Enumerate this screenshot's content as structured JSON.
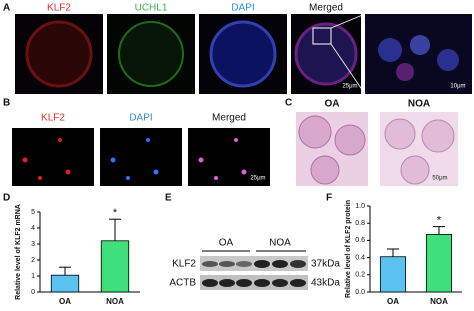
{
  "panels": {
    "labels": [
      "A",
      "B",
      "C",
      "D",
      "E",
      "F"
    ],
    "a_channels": [
      "KLF2",
      "UCHL1",
      "DAPI",
      "Merged"
    ],
    "a_scale": [
      "25μm",
      "10μm"
    ],
    "b_channels": [
      "KLF2",
      "DAPI",
      "Merged"
    ],
    "b_scale": "25μm",
    "c_groups": [
      "OA",
      "NOA"
    ],
    "c_scale": "50μm",
    "e_groups": [
      "OA",
      "NOA"
    ],
    "e_rows": [
      {
        "name": "KLF2",
        "size": "37kDa"
      },
      {
        "name": "ACTB",
        "size": "43kDa"
      }
    ]
  },
  "chart_data": [
    {
      "type": "bar",
      "y_label": "Relative level of KLF2 mRNA",
      "categories": [
        "OA",
        "NOA"
      ],
      "values": [
        1.05,
        3.2
      ],
      "errors": [
        0.5,
        1.35
      ],
      "colors": [
        "#5bc3f2",
        "#3fe07c"
      ],
      "ylim": [
        0,
        5
      ],
      "yticks": [
        0,
        1,
        2,
        3,
        4,
        5
      ],
      "annotation": "*"
    },
    {
      "type": "bar",
      "y_label": "Relative level of KLF2 protein",
      "categories": [
        "OA",
        "NOA"
      ],
      "values": [
        0.41,
        0.67
      ],
      "errors": [
        0.09,
        0.09
      ],
      "colors": [
        "#5bc3f2",
        "#3fe07c"
      ],
      "ylim": [
        0,
        1
      ],
      "yticks": [
        {
          "value": 0,
          "label": "0.0"
        },
        0.2,
        0.4,
        0.6,
        0.8,
        {
          "value": 1,
          "label": "1.0"
        }
      ],
      "annotation": "*"
    }
  ]
}
